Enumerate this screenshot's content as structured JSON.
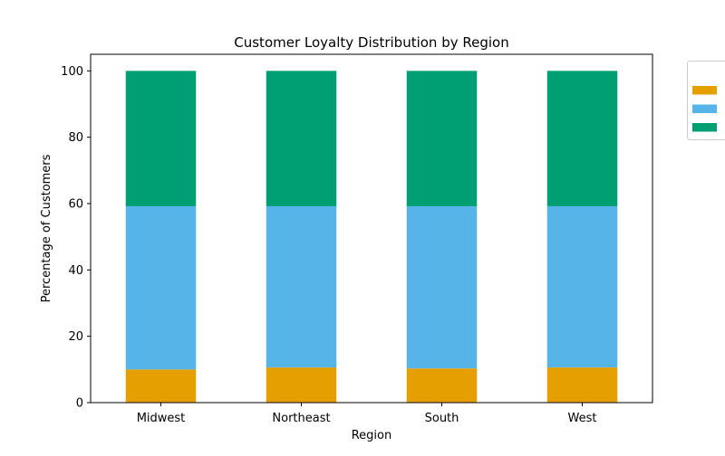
{
  "chart_data": {
    "type": "bar",
    "stacked": true,
    "title": "Customer Loyalty Distribution by Region",
    "xlabel": "Region",
    "ylabel": "Percentage of Customers",
    "categories": [
      "Midwest",
      "Northeast",
      "South",
      "West"
    ],
    "ylim": [
      0,
      105
    ],
    "yticks": [
      0,
      20,
      40,
      60,
      80,
      100
    ],
    "grid": false,
    "legend_position": "outside-top-right",
    "series": [
      {
        "color": "#E69F00",
        "values": [
          10.0,
          10.6,
          10.3,
          10.6
        ]
      },
      {
        "color": "#56B4E9",
        "values": [
          49.2,
          48.6,
          48.9,
          48.6
        ]
      },
      {
        "color": "#009E73",
        "values": [
          40.8,
          40.8,
          40.8,
          40.8
        ]
      }
    ]
  }
}
